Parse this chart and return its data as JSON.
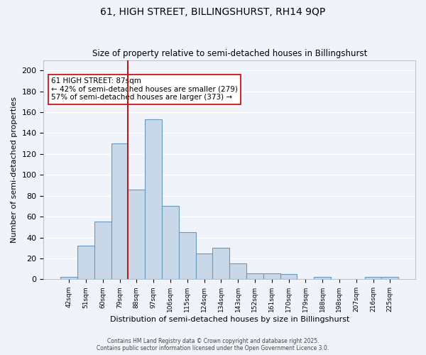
{
  "title1": "61, HIGH STREET, BILLINGSHURST, RH14 9QP",
  "title2": "Size of property relative to semi-detached houses in Billingshurst",
  "xlabel": "Distribution of semi-detached houses by size in Billingshurst",
  "ylabel": "Number of semi-detached properties",
  "footer": "Contains HM Land Registry data © Crown copyright and database right 2025.\nContains public sector information licensed under the Open Government Licence 3.0.",
  "bin_labels": [
    "42sqm",
    "51sqm",
    "60sqm",
    "79sqm",
    "88sqm",
    "97sqm",
    "106sqm",
    "115sqm",
    "124sqm",
    "134sqm",
    "143sqm",
    "152sqm",
    "161sqm",
    "170sqm",
    "179sqm",
    "188sqm",
    "198sqm",
    "207sqm",
    "216sqm",
    "225sqm"
  ],
  "bar_heights": [
    2,
    32,
    55,
    130,
    86,
    153,
    70,
    45,
    25,
    30,
    15,
    6,
    6,
    5,
    0,
    2,
    0,
    0,
    2,
    2
  ],
  "bar_color": "#c8d8e8",
  "bar_edge_color": "#6699bb",
  "property_size": 87,
  "property_bin_index": 4,
  "vline_color": "#aa2222",
  "annotation_text": "61 HIGH STREET: 87sqm\n← 42% of semi-detached houses are smaller (279)\n57% of semi-detached houses are larger (373) →",
  "annotation_box_color": "white",
  "annotation_box_edge_color": "#cc0000",
  "ylim": [
    0,
    210
  ],
  "yticks": [
    0,
    20,
    40,
    60,
    80,
    100,
    120,
    140,
    160,
    180,
    200
  ],
  "background_color": "#f0f4fa",
  "grid_color": "white"
}
